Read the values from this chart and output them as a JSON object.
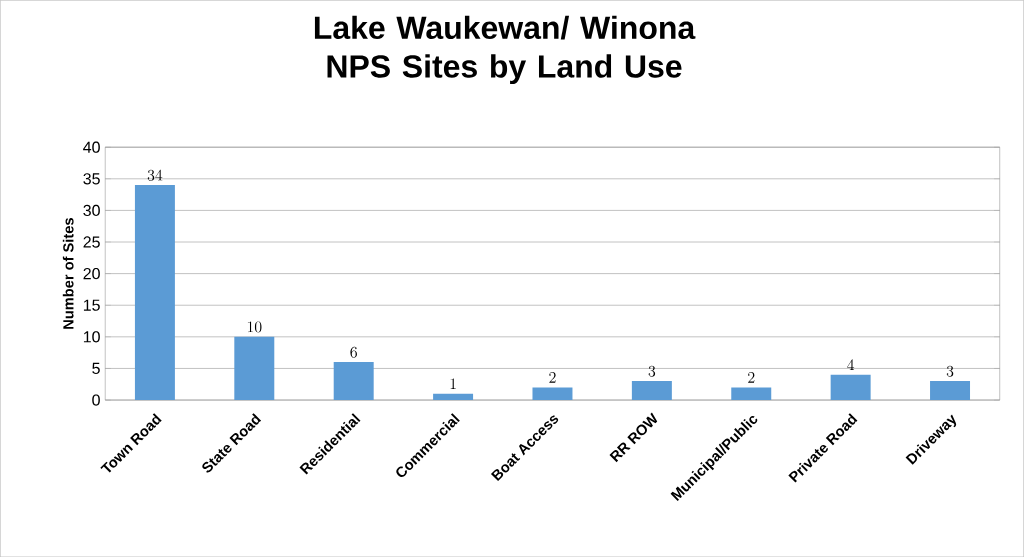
{
  "chart_data": {
    "type": "bar",
    "title": "Lake Waukewan/ Winona NPS Sites by Land Use",
    "ylabel": "Number of Sites",
    "categories": [
      "Town Road",
      "State Road",
      "Residential",
      "Commercial",
      "Boat Access",
      "RR ROW",
      "Municipal/Public",
      "Private Road",
      "Driveway"
    ],
    "values": [
      34,
      10,
      6,
      1,
      2,
      3,
      2,
      4,
      3
    ],
    "color": "#5b9bd5",
    "ylim": [
      0,
      40
    ],
    "yticks": [
      0,
      5,
      10,
      15,
      20,
      25,
      30,
      35,
      40
    ],
    "grid": "y",
    "data_labels": true
  }
}
